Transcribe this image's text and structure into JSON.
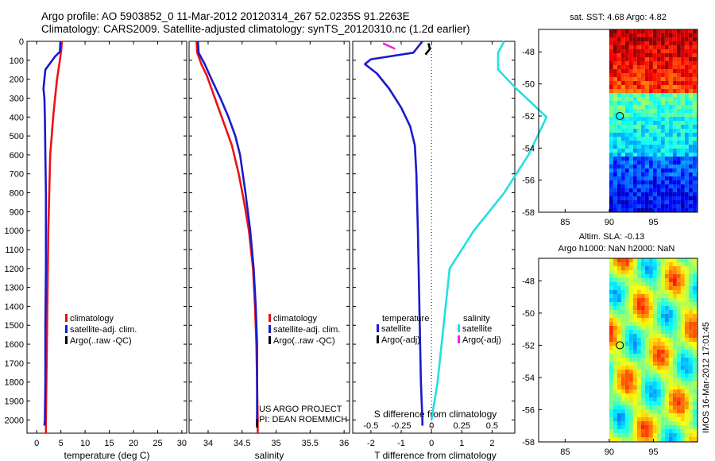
{
  "header": {
    "line1": "Argo profile: AO 5903852_0 11-Mar-2012 20120314_267 52.0235S 91.2263E",
    "line2": "Climatology: CARS2009. Satellite-adjusted climatology: synTS_20120310.nc (1.2d earlier)"
  },
  "credit": {
    "line1": "US ARGO PROJECT",
    "line2": "PI: DEAN ROEMMICH"
  },
  "stamp": "IMOS 16-Mar-2012 17:01:45",
  "colors": {
    "red": "#ee1111",
    "blue": "#1a1acc",
    "black": "#000000",
    "cyan": "#22e0e0",
    "magenta": "#ee22ee"
  },
  "chart_data": [
    {
      "id": "temperature",
      "type": "line",
      "xlabel": "temperature (deg C)",
      "xlim": [
        -2,
        31
      ],
      "xticks": [
        0,
        5,
        10,
        15,
        20,
        25,
        30
      ],
      "ylim": [
        0,
        2070
      ],
      "yticks": [
        0,
        100,
        200,
        300,
        400,
        500,
        600,
        700,
        800,
        900,
        1000,
        1100,
        1200,
        1300,
        1400,
        1500,
        1600,
        1700,
        1800,
        1900,
        2000
      ],
      "legend": [
        "climatology",
        "satellite-adj. clim.",
        "Argo(..raw -QC)"
      ],
      "series": [
        {
          "name": "climatology",
          "color": "red",
          "points": [
            [
              5.2,
              0
            ],
            [
              5.1,
              40
            ],
            [
              4.8,
              100
            ],
            [
              4.2,
              200
            ],
            [
              3.8,
              300
            ],
            [
              3.4,
              400
            ],
            [
              3.1,
              500
            ],
            [
              2.8,
              600
            ],
            [
              2.7,
              700
            ],
            [
              2.6,
              800
            ],
            [
              2.5,
              900
            ],
            [
              2.4,
              1000
            ],
            [
              2.3,
              1200
            ],
            [
              2.2,
              1400
            ],
            [
              2.1,
              1600
            ],
            [
              2.0,
              1800
            ],
            [
              1.9,
              2000
            ],
            [
              1.9,
              2070
            ]
          ]
        },
        {
          "name": "satellite-adj. clim.",
          "color": "blue",
          "points": [
            [
              4.9,
              0
            ],
            [
              4.8,
              55
            ],
            [
              3.8,
              80
            ],
            [
              1.8,
              150
            ],
            [
              1.4,
              250
            ],
            [
              1.6,
              300
            ],
            [
              1.7,
              400
            ],
            [
              1.8,
              600
            ],
            [
              1.9,
              800
            ],
            [
              1.9,
              1000
            ],
            [
              1.9,
              1200
            ],
            [
              1.8,
              1500
            ],
            [
              1.8,
              1800
            ],
            [
              1.7,
              2000
            ],
            [
              1.6,
              2030
            ]
          ]
        }
      ]
    },
    {
      "id": "salinity",
      "type": "line",
      "xlabel": "salinity",
      "xlim": [
        33.72,
        36.08
      ],
      "xticks": [
        34,
        34.5,
        35,
        35.5,
        36
      ],
      "ylim": [
        0,
        2070
      ],
      "legend": [
        "climatology",
        "satellite-adj. clim.",
        "Argo(..raw -QC)"
      ],
      "series": [
        {
          "name": "climatology",
          "color": "red",
          "points": [
            [
              33.83,
              0
            ],
            [
              33.84,
              60
            ],
            [
              33.9,
              120
            ],
            [
              33.98,
              180
            ],
            [
              34.05,
              250
            ],
            [
              34.15,
              350
            ],
            [
              34.25,
              450
            ],
            [
              34.35,
              550
            ],
            [
              34.45,
              700
            ],
            [
              34.53,
              850
            ],
            [
              34.6,
              1000
            ],
            [
              34.66,
              1200
            ],
            [
              34.69,
              1400
            ],
            [
              34.71,
              1600
            ],
            [
              34.72,
              1800
            ],
            [
              34.73,
              2000
            ],
            [
              34.73,
              2070
            ]
          ]
        },
        {
          "name": "satellite-adj. clim.",
          "color": "blue",
          "points": [
            [
              33.85,
              0
            ],
            [
              33.86,
              60
            ],
            [
              33.95,
              120
            ],
            [
              34.05,
              200
            ],
            [
              34.18,
              300
            ],
            [
              34.3,
              400
            ],
            [
              34.4,
              500
            ],
            [
              34.47,
              600
            ],
            [
              34.55,
              800
            ],
            [
              34.62,
              1000
            ],
            [
              34.67,
              1200
            ],
            [
              34.7,
              1400
            ],
            [
              34.72,
              1600
            ],
            [
              34.72,
              1800
            ],
            [
              34.72,
              2000
            ],
            [
              34.72,
              2030
            ]
          ]
        },
        {
          "name": "Argo",
          "color": "black",
          "points": [
            [
              34.72,
              1995
            ],
            [
              34.72,
              2040
            ]
          ]
        }
      ]
    },
    {
      "id": "difference",
      "type": "line",
      "xlabel": "T difference from climatology",
      "toplabel": "S difference from climatology",
      "xlim_T": [
        -2.6,
        2.75
      ],
      "xticks_T": [
        -2,
        -1,
        0,
        1,
        2
      ],
      "xticks_S": [
        -0.5,
        -0.25,
        0,
        0.25,
        0.5
      ],
      "xticklabels_S": [
        "-0.5",
        "-0.25",
        "0",
        "0.25",
        "0.5"
      ],
      "ylim": [
        0,
        2070
      ],
      "legend_T": {
        "title": "temperature",
        "items": [
          "satellite",
          "Argo(-adj)"
        ]
      },
      "legend_S": {
        "title": "salinity",
        "items": [
          "satellite",
          "Argo(-adj)"
        ]
      },
      "series": [
        {
          "name": "T satellite",
          "color": "blue",
          "points": [
            [
              -0.3,
              0
            ],
            [
              -0.6,
              60
            ],
            [
              -2.0,
              95
            ],
            [
              -2.2,
              120
            ],
            [
              -1.8,
              170
            ],
            [
              -1.4,
              250
            ],
            [
              -1.0,
              350
            ],
            [
              -0.7,
              450
            ],
            [
              -0.55,
              550
            ],
            [
              -0.5,
              700
            ],
            [
              -0.45,
              1000
            ],
            [
              -0.4,
              1400
            ],
            [
              -0.35,
              1800
            ],
            [
              -0.3,
              2000
            ],
            [
              -0.3,
              2030
            ]
          ]
        },
        {
          "name": "T Argo",
          "color": "black",
          "points": [
            [
              -0.1,
              10
            ],
            [
              -0.05,
              40
            ],
            [
              -0.2,
              70
            ]
          ]
        },
        {
          "name": "S satellite",
          "color": "cyan",
          "points": [
            [
              0.6,
              0
            ],
            [
              0.55,
              60
            ],
            [
              0.55,
              150
            ],
            [
              0.7,
              250
            ],
            [
              0.95,
              400
            ],
            [
              0.8,
              600
            ],
            [
              0.6,
              800
            ],
            [
              0.35,
              1000
            ],
            [
              0.15,
              1200
            ],
            [
              0.1,
              1500
            ],
            [
              0.05,
              1800
            ],
            [
              0.0,
              2000
            ]
          ]
        },
        {
          "name": "S Argo",
          "color": "magenta",
          "points": [
            [
              -0.4,
              10
            ],
            [
              -0.3,
              40
            ]
          ]
        }
      ]
    }
  ],
  "maps": [
    {
      "id": "sst",
      "title": "sat. SST: 4.68 Argo: 4.82",
      "xlim": [
        82,
        100
      ],
      "ylim": [
        -58,
        -46.6
      ],
      "xticks": [
        85,
        90,
        95
      ],
      "yticks": [
        -48,
        -50,
        -52,
        -54,
        -56,
        -58
      ],
      "marker": [
        91.2,
        -52.0
      ]
    },
    {
      "id": "sla",
      "title1": "Altim. SLA: -0.13",
      "title2": "Argo h1000: NaN h2000: NaN",
      "xlim": [
        82,
        100
      ],
      "ylim": [
        -58,
        -46.6
      ],
      "xticks": [
        85,
        90,
        95
      ],
      "yticks": [
        -48,
        -50,
        -52,
        -54,
        -56,
        -58
      ],
      "marker": [
        91.2,
        -52.0
      ]
    }
  ]
}
